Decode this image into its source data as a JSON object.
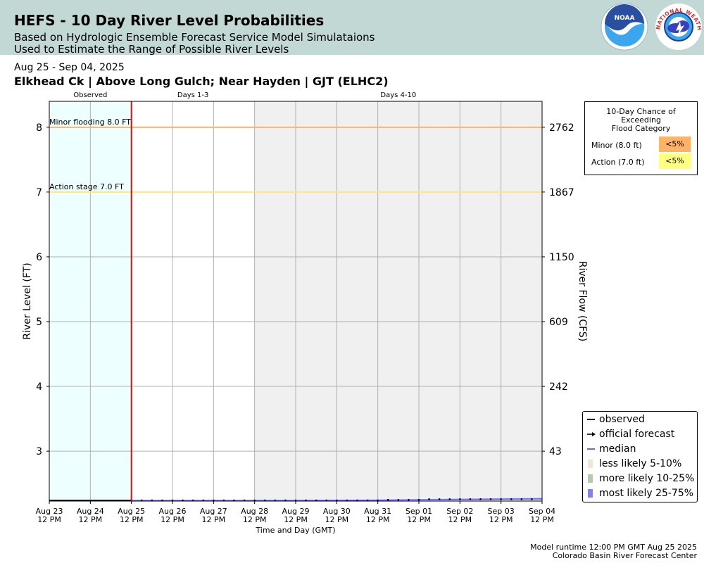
{
  "header": {
    "title": "HEFS - 10 Day River Level Probabilities",
    "subtitle1": "Based on Hydrologic Ensemble Forecast Service Model Simulataions",
    "subtitle2": "Used to Estimate the Range of Possible River Levels"
  },
  "date_range": "Aug 25 - Sep 04, 2025",
  "station": "Elkhead Ck | Above Long Gulch; Near Hayden | GJT (ELHC2)",
  "logos": {
    "noaa": "NOAA",
    "nws": "NATIONAL WEATHER SERVICE"
  },
  "chance_box": {
    "title": [
      "10-Day Chance of",
      "Exceeding",
      "Flood Category"
    ],
    "rows": [
      {
        "label": "Minor (8.0 ft)",
        "value": "<5%",
        "color": "#ffb366"
      },
      {
        "label": "Action (7.0 ft)",
        "value": "<5%",
        "color": "#ffff80"
      }
    ]
  },
  "legend": [
    {
      "label": "observed",
      "type": "line-dot",
      "color": "#000000"
    },
    {
      "label": "official forecast",
      "type": "arrow",
      "color": "#000000"
    },
    {
      "label": "median",
      "type": "line",
      "color": "#6666ff"
    },
    {
      "label": "less likely 5-10%",
      "type": "patch",
      "color": "#efe6d6"
    },
    {
      "label": "more likely 10-25%",
      "type": "patch",
      "color": "#b3ccaa"
    },
    {
      "label": "most likely 25-75%",
      "type": "patch",
      "color": "#8080ff"
    }
  ],
  "footer": {
    "line1": "Model runtime 12:00 PM GMT Aug 25 2025",
    "line2": "Colorado Basin River Forecast Center"
  },
  "chart_data": {
    "type": "line",
    "xlabel": "Time and Day (GMT)",
    "ylabel": "River Level (FT)",
    "ylabel_right": "River Flow (CFS)",
    "x_ticks": [
      [
        "Aug 23",
        "12 PM"
      ],
      [
        "Aug 24",
        "12 PM"
      ],
      [
        "Aug 25",
        "12 PM"
      ],
      [
        "Aug 26",
        "12 PM"
      ],
      [
        "Aug 27",
        "12 PM"
      ],
      [
        "Aug 28",
        "12 PM"
      ],
      [
        "Aug 29",
        "12 PM"
      ],
      [
        "Aug 30",
        "12 PM"
      ],
      [
        "Aug 31",
        "12 PM"
      ],
      [
        "Sep 01",
        "12 PM"
      ],
      [
        "Sep 02",
        "12 PM"
      ],
      [
        "Sep 03",
        "12 PM"
      ],
      [
        "Sep 04",
        "12 PM"
      ]
    ],
    "xlim_days": [
      0,
      12
    ],
    "ylim": [
      2.23,
      8.4
    ],
    "y_ticks": [
      3,
      4,
      5,
      6,
      7,
      8
    ],
    "y_right_ticks": [
      {
        "stage": 3,
        "label": "43"
      },
      {
        "stage": 4,
        "label": "242"
      },
      {
        "stage": 5,
        "label": "609"
      },
      {
        "stage": 6,
        "label": "1150"
      },
      {
        "stage": 7,
        "label": "1867"
      },
      {
        "stage": 8,
        "label": "2762"
      }
    ],
    "periods": [
      {
        "label": "Observed",
        "start": 0,
        "end": 2,
        "color": "#eeffff"
      },
      {
        "label": "Days 1-3",
        "start": 2,
        "end": 5,
        "color": "#ffffff"
      },
      {
        "label": "Days 4-10",
        "start": 5,
        "end": 12,
        "color": "#f0f0f0"
      }
    ],
    "forecast_start": 2,
    "thresholds": [
      {
        "label": "Minor flooding 8.0 FT",
        "value": 8.0,
        "color": "#ffb366"
      },
      {
        "label": "Action stage 7.0 FT",
        "value": 7.0,
        "color": "#ffe680"
      }
    ],
    "observed": {
      "x": [
        0,
        2
      ],
      "y": [
        2.24,
        2.24
      ]
    },
    "official_forecast": {
      "x": [
        2.25,
        2.5,
        2.75,
        3,
        3.25,
        3.5,
        3.75,
        4,
        4.25,
        4.5,
        4.75,
        5,
        5.25,
        5.5,
        5.75,
        6,
        6.25,
        6.5,
        6.75,
        7,
        7.25,
        7.5,
        7.75,
        8,
        8.25,
        8.5,
        8.75,
        9,
        9.25,
        9.5,
        9.75,
        10,
        10.25,
        10.5,
        10.75,
        11,
        11.25,
        11.5,
        11.75
      ],
      "y": [
        2.24,
        2.24,
        2.24,
        2.24,
        2.24,
        2.24,
        2.24,
        2.24,
        2.24,
        2.24,
        2.24,
        2.24,
        2.24,
        2.24,
        2.24,
        2.24,
        2.24,
        2.24,
        2.24,
        2.24,
        2.24,
        2.24,
        2.24,
        2.24,
        2.25,
        2.25,
        2.25,
        2.25,
        2.26,
        2.26,
        2.26,
        2.26,
        2.26,
        2.26,
        2.26,
        2.26,
        2.26,
        2.26,
        2.26
      ]
    },
    "median": {
      "x": [
        2,
        4,
        6,
        8,
        9,
        10,
        11,
        12
      ],
      "y": [
        2.24,
        2.24,
        2.24,
        2.245,
        2.25,
        2.255,
        2.26,
        2.265
      ]
    },
    "most_likely": {
      "x": [
        2,
        6,
        8,
        9,
        10,
        11,
        12
      ],
      "low": [
        2.23,
        2.23,
        2.235,
        2.24,
        2.245,
        2.25,
        2.25
      ],
      "high": [
        2.24,
        2.24,
        2.25,
        2.26,
        2.27,
        2.275,
        2.28
      ]
    }
  }
}
